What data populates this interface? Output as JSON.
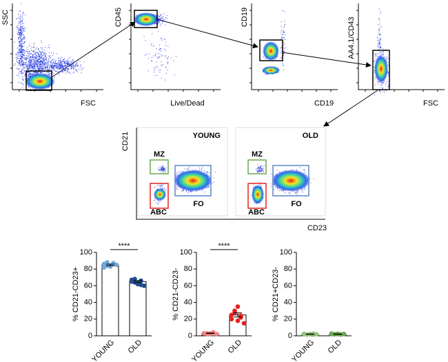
{
  "flow_plots": [
    {
      "y_label": "SSC",
      "x_label": "FSC"
    },
    {
      "y_label": "CD45",
      "x_label": "Live/Dead"
    },
    {
      "y_label": "CD19",
      "x_label": "CD19"
    },
    {
      "y_label": "AA4.1/CD43",
      "x_label": "FSC"
    }
  ],
  "cd21_cd23": {
    "y_label": "CD21",
    "x_label": "CD23",
    "panels": [
      {
        "title": "YOUNG",
        "gates": [
          {
            "label": "MZ",
            "color": "#6aa84f"
          },
          {
            "label": "ABC",
            "color": "#e8201f"
          },
          {
            "label": "FO",
            "color": "#5b87c5"
          }
        ]
      },
      {
        "title": "OLD",
        "gates": [
          {
            "label": "MZ",
            "color": "#6aa84f"
          },
          {
            "label": "ABC",
            "color": "#e8201f"
          },
          {
            "label": "FO",
            "color": "#5b87c5"
          }
        ]
      }
    ]
  },
  "chart_data": [
    {
      "type": "bar",
      "y_label": "% CD21-CD23+",
      "categories": [
        "YOUNG",
        "OLD"
      ],
      "values": [
        85,
        65
      ],
      "errors": [
        1,
        1.2
      ],
      "points": [
        [
          86,
          84,
          83,
          87,
          85,
          82,
          88,
          84
        ],
        [
          67,
          64,
          62,
          66,
          60,
          65,
          68,
          63,
          61
        ]
      ],
      "point_colors": [
        "#6fa8dc",
        "#1f4e8c"
      ],
      "significance": "****",
      "ylim": [
        0,
        100
      ],
      "yticks": [
        0,
        20,
        40,
        60,
        80,
        100
      ]
    },
    {
      "type": "bar",
      "y_label": "% CD21-CD23-",
      "categories": [
        "YOUNG",
        "OLD"
      ],
      "values": [
        3,
        25
      ],
      "errors": [
        0.3,
        2.5
      ],
      "points": [
        [
          3,
          2,
          3,
          4,
          2,
          3,
          3,
          2
        ],
        [
          20,
          28,
          35,
          22,
          15,
          25,
          30,
          18,
          24
        ]
      ],
      "point_colors": [
        "#f4827f",
        "#e8201f"
      ],
      "significance": "****",
      "ylim": [
        0,
        100
      ],
      "yticks": [
        0,
        20,
        40,
        60,
        80,
        100
      ]
    },
    {
      "type": "bar",
      "y_label": "% CD21+CD23-",
      "categories": [
        "YOUNG",
        "OLD"
      ],
      "values": [
        2,
        2
      ],
      "errors": [
        0.2,
        0.2
      ],
      "points": [
        [
          2,
          1.5,
          2,
          2.5,
          1.8,
          2.2,
          1.6,
          2
        ],
        [
          2,
          1.8,
          2.4,
          1.5,
          2.2,
          2.6,
          1.9,
          2.1,
          1.7
        ]
      ],
      "point_colors": [
        "#93c47d",
        "#6aa84f"
      ],
      "ylim": [
        0,
        100
      ],
      "yticks": [
        0,
        20,
        40,
        60,
        80,
        100
      ]
    }
  ]
}
